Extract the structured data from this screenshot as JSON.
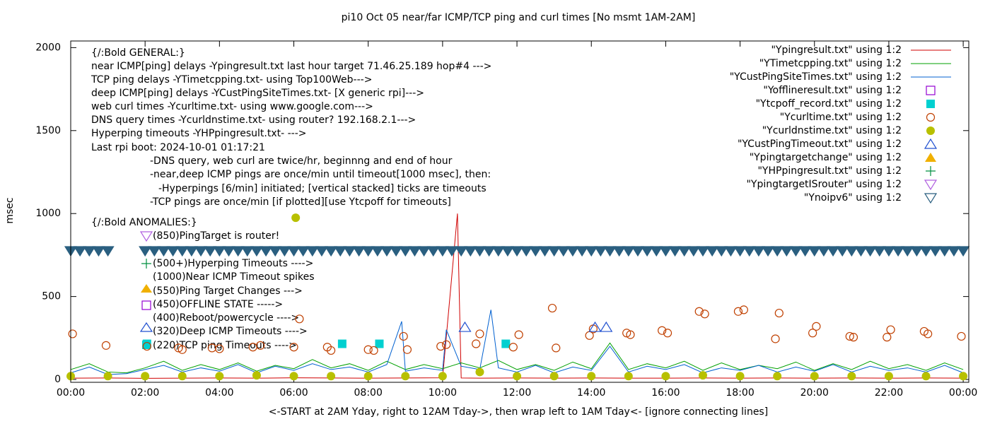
{
  "chart_data": {
    "type": "mixed",
    "title": "pi10 Oct 05  near/far ICMP/TCP ping and curl times [No msmt 1AM-2AM]",
    "x_label": "<-START at 2AM Yday, right to 12AM Tday->, then wrap left to 1AM Tday<- [ignore connecting lines]",
    "y_label": "msec",
    "xlim": [
      0,
      24.15
    ],
    "ylim": [
      -17,
      2040
    ],
    "xticks": [
      {
        "value": 0,
        "label": "00:00"
      },
      {
        "value": 2,
        "label": "02:00"
      },
      {
        "value": 4,
        "label": "04:00"
      },
      {
        "value": 6,
        "label": "06:00"
      },
      {
        "value": 8,
        "label": "08:00"
      },
      {
        "value": 10,
        "label": "10:00"
      },
      {
        "value": 12,
        "label": "12:00"
      },
      {
        "value": 14,
        "label": "14:00"
      },
      {
        "value": 16,
        "label": "16:00"
      },
      {
        "value": 18,
        "label": "18:00"
      },
      {
        "value": 20,
        "label": "20:00"
      },
      {
        "value": 22,
        "label": "22:00"
      },
      {
        "value": 24,
        "label": "00:00"
      }
    ],
    "yticks": [
      0,
      500,
      1000,
      1500,
      2000
    ],
    "annotations": [
      "{/:Bold GENERAL:}",
      "near ICMP[ping] delays -Ypingresult.txt last hour target 71.46.25.189 hop#4 --->",
      "TCP ping delays -YTimetcpping.txt- using Top100Web--->",
      "deep ICMP[ping] delays -YCustPingSiteTimes.txt- [X generic rpi]--->",
      "web curl times -Ycurltime.txt- using www.google.com--->",
      "DNS query times -Ycurldnstime.txt- using router? 192.168.2.1--->",
      "Hyperping timeouts -YHPpingresult.txt- --->",
      "Last rpi boot: 2024-10-01 01:17:21",
      "-DNS query, web curl are twice/hr, beginnng and end of hour",
      "-near,deep ICMP pings are once/min until timeout[1000 msec], then:",
      "-Hyperpings [6/min] initiated; [vertical stacked] ticks are timeouts",
      "-TCP pings are once/min [if plotted][use Ytcpoff for timeouts]",
      "{/:Bold ANOMALIES:}",
      "(850)PingTarget is router!",
      "(500+)Hyperping Timeouts ---->",
      "(1000)Near ICMP Timeout spikes",
      "(550)Ping Target Changes --->",
      "(450)OFFLINE STATE ----->",
      "(400)Reboot/powercycle ---->",
      "(320)Deep ICMP Timeouts ---->",
      "(220)TCP ping Timeouts ---->"
    ],
    "series": [
      {
        "name": "\"Ypingresult.txt\" using 1:2",
        "type": "line",
        "color": "#d00000",
        "x": [
          0,
          1,
          2,
          3,
          4,
          5,
          6,
          7,
          8,
          9,
          10,
          10.4,
          10.45,
          10.5,
          11,
          12,
          13,
          14,
          15,
          16,
          17,
          18,
          19,
          20,
          21,
          22,
          23,
          24
        ],
        "values": [
          8,
          9,
          7,
          8,
          9,
          8,
          10,
          9,
          8,
          9,
          10,
          1000,
          500,
          9,
          8,
          9,
          8,
          9,
          8,
          8,
          9,
          8,
          9,
          8,
          9,
          8,
          9,
          8
        ]
      },
      {
        "name": "\"YTimetcpping.txt\" using 1:2",
        "type": "line",
        "color": "#00a000",
        "x": [
          0,
          0.5,
          1,
          1.5,
          2,
          2.5,
          3,
          3.5,
          4,
          4.5,
          5,
          5.5,
          6,
          6.5,
          7,
          7.5,
          8,
          8.5,
          9,
          9.5,
          10,
          10.5,
          11,
          11.5,
          12,
          12.5,
          13,
          13.5,
          14,
          14.5,
          15,
          15.5,
          16,
          16.5,
          17,
          17.5,
          18,
          18.5,
          19,
          19.5,
          20,
          20.5,
          21,
          21.5,
          22,
          22.5,
          23,
          23.5,
          24
        ],
        "values": [
          60,
          95,
          45,
          40,
          70,
          110,
          55,
          90,
          60,
          100,
          50,
          85,
          65,
          120,
          70,
          95,
          55,
          110,
          60,
          90,
          65,
          100,
          70,
          115,
          60,
          90,
          55,
          105,
          65,
          220,
          60,
          95,
          70,
          110,
          55,
          100,
          60,
          85,
          65,
          105,
          55,
          95,
          60,
          110,
          65,
          90,
          55,
          100,
          60
        ]
      },
      {
        "name": "\"YCustPingSiteTimes.txt\" using 1:2",
        "type": "line",
        "color": "#0060d0",
        "x": [
          0,
          0.5,
          1,
          1.5,
          2,
          2.5,
          3,
          3.5,
          4,
          4.5,
          5,
          5.5,
          6,
          6.5,
          7,
          7.5,
          8,
          8.5,
          8.9,
          9,
          9.5,
          10,
          10.1,
          10.5,
          11,
          11.3,
          11.5,
          12,
          12.5,
          13,
          13.5,
          14,
          14.5,
          15,
          15.5,
          16,
          16.5,
          17,
          17.5,
          18,
          18.5,
          19,
          19.5,
          20,
          20.5,
          21,
          21.5,
          22,
          22.5,
          23,
          23.5,
          24
        ],
        "values": [
          40,
          75,
          30,
          35,
          60,
          85,
          45,
          70,
          50,
          90,
          40,
          80,
          55,
          95,
          60,
          75,
          45,
          90,
          350,
          50,
          70,
          55,
          300,
          80,
          60,
          420,
          70,
          45,
          85,
          40,
          75,
          55,
          200,
          45,
          80,
          60,
          90,
          40,
          70,
          55,
          85,
          45,
          75,
          50,
          90,
          45,
          80,
          55,
          70,
          45,
          85,
          40
        ]
      },
      {
        "name": "\"Yofflineresult.txt\" using 1:2",
        "type": "scatter",
        "marker": "square-open",
        "color": "#9400d3",
        "x": [],
        "values": []
      },
      {
        "name": "\"Ytcpoff_record.txt\" using 1:2",
        "type": "scatter",
        "marker": "square",
        "color": "#00d0d0",
        "x": [
          2.05,
          7.3,
          8.3,
          11.7
        ],
        "values": [
          215,
          215,
          215,
          215
        ]
      },
      {
        "name": "\"Ycurltime.txt\" using 1:2",
        "type": "scatter",
        "marker": "circle-open",
        "color": "#c04000",
        "x": [
          0.05,
          0.95,
          2.05,
          2.9,
          3.0,
          3.8,
          4.0,
          4.9,
          5.1,
          6.0,
          6.15,
          6.9,
          7.0,
          8.0,
          8.15,
          8.95,
          9.05,
          9.95,
          10.1,
          10.9,
          11.0,
          11.9,
          12.05,
          12.95,
          13.05,
          13.95,
          14.05,
          14.95,
          15.05,
          15.9,
          16.05,
          16.9,
          17.05,
          17.95,
          18.1,
          18.95,
          19.05,
          19.95,
          20.05,
          20.95,
          21.05,
          21.95,
          22.05,
          22.95,
          23.05,
          23.95
        ],
        "values": [
          275,
          205,
          200,
          190,
          180,
          190,
          185,
          195,
          205,
          195,
          365,
          195,
          175,
          180,
          175,
          260,
          180,
          200,
          210,
          215,
          275,
          195,
          270,
          430,
          190,
          265,
          305,
          280,
          270,
          295,
          280,
          410,
          395,
          410,
          420,
          245,
          400,
          280,
          320,
          260,
          255,
          255,
          300,
          290,
          275,
          260
        ]
      },
      {
        "name": "\"Ycurldnstime.txt\" using 1:2",
        "type": "scatter",
        "marker": "circle",
        "color": "#b8c000",
        "x": [
          0,
          1,
          2,
          3,
          4,
          5,
          6,
          6.05,
          7,
          8,
          9,
          10,
          11,
          12,
          13,
          14,
          15,
          16,
          17,
          18,
          19,
          20,
          21,
          22,
          23,
          24
        ],
        "values": [
          20,
          20,
          20,
          20,
          20,
          25,
          20,
          975,
          20,
          20,
          20,
          20,
          45,
          20,
          20,
          20,
          20,
          20,
          25,
          20,
          20,
          20,
          20,
          20,
          20,
          20
        ]
      },
      {
        "name": "\"YCustPingTimeout.txt\" using 1:2",
        "type": "scatter",
        "marker": "triangle-open",
        "color": "#2050d0",
        "x": [
          10.6,
          14.1,
          14.4
        ],
        "values": [
          315,
          315,
          315
        ]
      },
      {
        "name": "\"Ypingtargetchange\" using 1:2",
        "type": "scatter",
        "marker": "triangle",
        "color": "#f0b000",
        "x": [],
        "values": []
      },
      {
        "name": "\"YHPpingresult.txt\" using 1:2",
        "type": "scatter",
        "marker": "plus",
        "color": "#009040",
        "x": [],
        "values": []
      },
      {
        "name": "\"YpingtargetISrouter\" using 1:2",
        "type": "scatter",
        "marker": "triangle-down-open",
        "color": "#b060e0",
        "x": [],
        "values": []
      },
      {
        "name": "\"Ynoipv6\" using 1:2",
        "type": "scatter",
        "marker": "triangle-down-open",
        "color": "#2a5f80",
        "x": [
          0,
          0.25,
          0.5,
          0.75,
          1.0,
          2.0,
          2.25,
          2.5,
          2.75,
          3.0,
          3.25,
          3.5,
          3.75,
          4.0,
          4.25,
          4.5,
          4.75,
          5.0,
          5.25,
          5.5,
          5.75,
          6.0,
          6.25,
          6.5,
          6.75,
          7.0,
          7.25,
          7.5,
          7.75,
          8.0,
          8.25,
          8.5,
          8.75,
          9.0,
          9.25,
          9.5,
          9.75,
          10.0,
          10.25,
          10.5,
          10.75,
          11.0,
          11.25,
          11.5,
          11.75,
          12.0,
          12.25,
          12.5,
          12.75,
          13.0,
          13.25,
          13.5,
          13.75,
          14.0,
          14.25,
          14.5,
          14.75,
          15.0,
          15.25,
          15.5,
          15.75,
          16.0,
          16.25,
          16.5,
          16.75,
          17.0,
          17.25,
          17.5,
          17.75,
          18.0,
          18.25,
          18.5,
          18.75,
          19.0,
          19.25,
          19.5,
          19.75,
          20.0,
          20.25,
          20.5,
          20.75,
          21.0,
          21.25,
          21.5,
          21.75,
          22.0,
          22.25,
          22.5,
          22.75,
          23.0,
          23.25,
          23.5,
          23.75,
          24.0
        ],
        "values": [
          775,
          775,
          775,
          775,
          775,
          775,
          775,
          775,
          775,
          775,
          775,
          775,
          775,
          775,
          775,
          775,
          775,
          775,
          775,
          775,
          775,
          775,
          775,
          775,
          775,
          775,
          775,
          775,
          775,
          775,
          775,
          775,
          775,
          775,
          775,
          775,
          775,
          775,
          775,
          775,
          775,
          775,
          775,
          775,
          775,
          775,
          775,
          775,
          775,
          775,
          775,
          775,
          775,
          775,
          775,
          775,
          775,
          775,
          775,
          775,
          775,
          775,
          775,
          775,
          775,
          775,
          775,
          775,
          775,
          775,
          775,
          775,
          775,
          775,
          775,
          775,
          775,
          775,
          775,
          775,
          775,
          775,
          775,
          775,
          775,
          775,
          775,
          775,
          775,
          775,
          775,
          775,
          775,
          775
        ]
      }
    ]
  }
}
